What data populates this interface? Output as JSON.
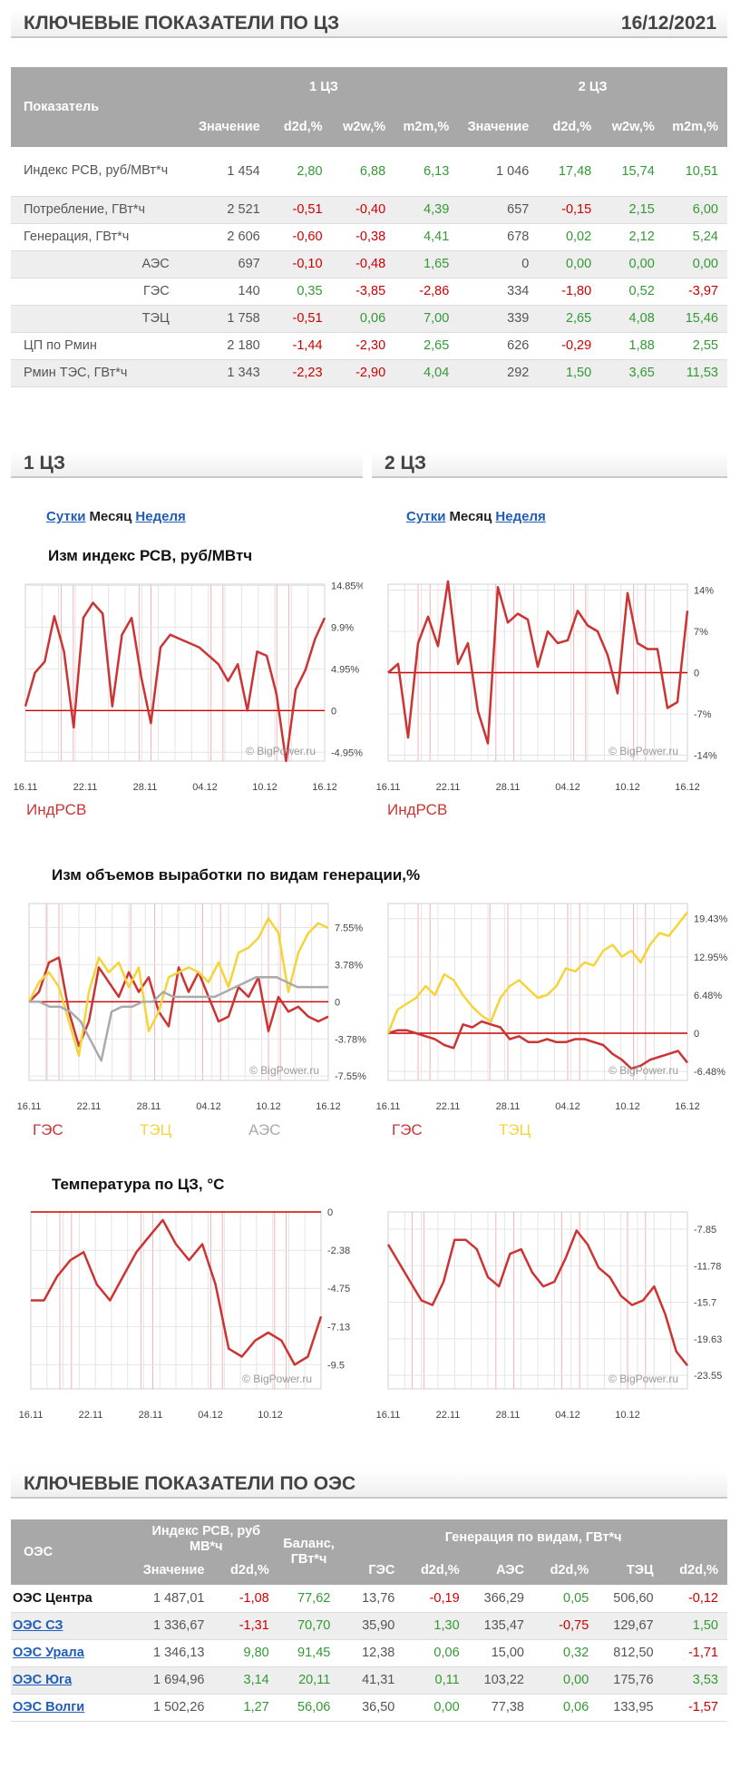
{
  "header": {
    "title": "КЛЮЧЕВЫЕ ПОКАЗАТЕЛИ ПО ЦЗ",
    "date": "16/12/2021"
  },
  "kp_table": {
    "col_indicator": "Показатель",
    "zone1": "1 ЦЗ",
    "zone2": "2 ЦЗ",
    "sub": [
      "Значение",
      "d2d,%",
      "w2w,%",
      "m2m,%",
      "Значение",
      "d2d,%",
      "w2w,%",
      "m2m,%"
    ],
    "rows": [
      {
        "label": "Индекс РСВ, руб/МВт*ч",
        "indent": false,
        "cells": [
          "1 454",
          "2,80",
          "6,88",
          "6,13",
          "1 046",
          "17,48",
          "15,74",
          "10,51"
        ]
      },
      {
        "label": "Потребление, ГВт*ч",
        "indent": false,
        "cells": [
          "2 521",
          "-0,51",
          "-0,40",
          "4,39",
          "657",
          "-0,15",
          "2,15",
          "6,00"
        ]
      },
      {
        "label": "Генерация, ГВт*ч",
        "indent": false,
        "cells": [
          "2 606",
          "-0,60",
          "-0,38",
          "4,41",
          "678",
          "0,02",
          "2,12",
          "5,24"
        ]
      },
      {
        "label": "АЭС",
        "indent": true,
        "cells": [
          "697",
          "-0,10",
          "-0,48",
          "1,65",
          "0",
          "0,00",
          "0,00",
          "0,00"
        ]
      },
      {
        "label": "ГЭС",
        "indent": true,
        "cells": [
          "140",
          "0,35",
          "-3,85",
          "-2,86",
          "334",
          "-1,80",
          "0,52",
          "-3,97"
        ]
      },
      {
        "label": "ТЭЦ",
        "indent": true,
        "cells": [
          "1 758",
          "-0,51",
          "0,06",
          "7,00",
          "339",
          "2,65",
          "4,08",
          "15,46"
        ]
      },
      {
        "label": "ЦП по Рмин",
        "indent": false,
        "cells": [
          "2 180",
          "-1,44",
          "-2,30",
          "2,65",
          "626",
          "-0,29",
          "1,88",
          "2,55"
        ]
      },
      {
        "label": "Рмин ТЭС, ГВт*ч",
        "indent": false,
        "cells": [
          "1 343",
          "-2,23",
          "-2,90",
          "4,04",
          "292",
          "1,50",
          "3,65",
          "11,53"
        ]
      }
    ]
  },
  "sections": {
    "z1": "1 ЦЗ",
    "z2": "2 ЦЗ"
  },
  "period": {
    "day": "Сутки",
    "month": "Месяц",
    "week": "Неделя"
  },
  "chart_titles": {
    "rsv": "Изм индекс РСВ, руб/МВтч",
    "gen": "Изм объемов выработки по видам генерации,%",
    "temp": "Температура по ЦЗ, °С"
  },
  "watermark": "© BigPower.ru",
  "legends": {
    "rsv": "ИндРСВ",
    "ges": "ГЭС",
    "tec": "ТЭЦ",
    "aes": "АЭС"
  },
  "colors": {
    "red": "#cc3333",
    "yellow": "#f5d43a",
    "gray": "#aaaaaa",
    "link": "#1f5db8",
    "pos": "#339933",
    "neg": "#cc0000"
  },
  "chart_data": [
    {
      "id": "rsv1",
      "type": "line",
      "x_labels": [
        "16.11",
        "22.11",
        "28.11",
        "04.12",
        "10.12",
        "16.12"
      ],
      "y_ticks": [
        "14.85%",
        "9.9%",
        "4.95%",
        "0",
        "-4.95%"
      ],
      "ylim": [
        -6,
        15
      ],
      "series": [
        {
          "name": "ИндРСВ",
          "values": [
            0.5,
            4.5,
            5.8,
            11.2,
            7,
            -2,
            11,
            12.8,
            11.5,
            0.5,
            9,
            11,
            4,
            -1.5,
            7.5,
            9,
            8.5,
            8,
            7.5,
            6.5,
            5.5,
            3.5,
            5.5,
            0,
            7,
            6.5,
            2,
            -6,
            2.5,
            4.8,
            8.5,
            11
          ]
        }
      ]
    },
    {
      "id": "rsv2",
      "type": "line",
      "x_labels": [
        "16.11",
        "22.11",
        "28.11",
        "04.12",
        "10.12",
        "16.12"
      ],
      "y_ticks": [
        "14%",
        "7%",
        "0",
        "-7%",
        "-14%"
      ],
      "ylim": [
        -15,
        15
      ],
      "series": [
        {
          "name": "ИндРСВ",
          "values": [
            0,
            1.5,
            -11,
            5,
            9.5,
            4.5,
            15.5,
            1.5,
            5,
            -6.5,
            -12,
            14.5,
            8.5,
            10,
            9,
            1,
            7,
            5,
            5.5,
            10.5,
            8,
            7,
            3,
            -3.5,
            13.5,
            5,
            4,
            4,
            -6,
            -5,
            10.5
          ]
        }
      ]
    },
    {
      "id": "gen1",
      "type": "line",
      "x_labels": [
        "16.11",
        "22.11",
        "28.11",
        "04.12",
        "10.12",
        "16.12"
      ],
      "y_ticks": [
        "7.55%",
        "3.78%",
        "0",
        "-3.78%",
        "-7.55%"
      ],
      "ylim": [
        -8,
        10
      ],
      "series": [
        {
          "name": "ГЭС",
          "values": [
            0,
            1,
            4,
            4.5,
            -1,
            -4.5,
            -2,
            3.5,
            2,
            0.5,
            3,
            1,
            2.5,
            -1,
            -2.5,
            3.5,
            1,
            3,
            0.5,
            -2,
            -1.5,
            1.5,
            0.5,
            2.5,
            -3,
            0.5,
            -1,
            -0.5,
            -1.5,
            -2,
            -1.5
          ]
        },
        {
          "name": "ТЭЦ",
          "values": [
            0,
            2,
            3,
            1.5,
            -2,
            -5.5,
            1,
            4.5,
            3,
            4,
            1.5,
            3.5,
            -3,
            -1,
            2.5,
            3,
            3.5,
            3,
            2,
            4,
            1.5,
            5,
            5.5,
            6.5,
            8.5,
            7,
            1,
            5,
            7,
            8,
            7.5
          ]
        },
        {
          "name": "АЭС",
          "values": [
            0,
            0,
            -0.5,
            -0.5,
            -1,
            -2,
            -4,
            -6,
            -1,
            -0.5,
            -0.5,
            0,
            0,
            1,
            0.5,
            0.5,
            0.5,
            0.5,
            0.5,
            1,
            1.5,
            2,
            2.5,
            2.5,
            2.5,
            2,
            1.5,
            1.5,
            1.5,
            1.5
          ]
        }
      ]
    },
    {
      "id": "gen2",
      "type": "line",
      "x_labels": [
        "16.11",
        "22.11",
        "28.11",
        "04.12",
        "10.12",
        "16.12"
      ],
      "y_ticks": [
        "19.43%",
        "12.95%",
        "6.48%",
        "0",
        "-6.48%"
      ],
      "ylim": [
        -8,
        22
      ],
      "series": [
        {
          "name": "ГЭС",
          "values": [
            0,
            0.5,
            0.5,
            0,
            -0.5,
            -1,
            -2,
            -2.5,
            1.5,
            1,
            2,
            1.5,
            1,
            -1,
            -0.5,
            -1.5,
            -1.5,
            -1,
            -1.5,
            -1.5,
            -1,
            -1,
            -1.5,
            -2,
            -3.5,
            -4.5,
            -6,
            -5.5,
            -4.5,
            -4,
            -3.5,
            -3,
            -5
          ]
        },
        {
          "name": "ТЭЦ",
          "values": [
            0,
            4,
            5,
            6,
            8,
            6.5,
            10,
            9,
            6.5,
            4.5,
            3,
            2,
            6,
            8,
            9,
            7.5,
            6,
            6.5,
            8,
            11,
            10.5,
            12,
            11.5,
            14,
            15,
            13,
            14,
            12,
            15,
            17,
            16.5,
            18.5,
            20.5
          ]
        }
      ]
    },
    {
      "id": "temp1",
      "type": "line",
      "x_labels": [
        "16.11",
        "22.11",
        "28.11",
        "04.12",
        "10.12"
      ],
      "y_ticks": [
        "0",
        "-2.38",
        "-4.75",
        "-7.13",
        "-9.5"
      ],
      "ylim": [
        -11,
        0
      ],
      "series": [
        {
          "name": "",
          "values": [
            -5.5,
            -5.5,
            -4,
            -3,
            -2.5,
            -4.5,
            -5.5,
            -4,
            -2.5,
            -1.5,
            -0.5,
            -2,
            -3,
            -2,
            -4.5,
            -8.5,
            -9,
            -8,
            -7.5,
            -8,
            -9.5,
            -9,
            -6.5
          ]
        }
      ]
    },
    {
      "id": "temp2",
      "type": "line",
      "x_labels": [
        "16.11",
        "22.11",
        "28.11",
        "04.12",
        "10.12"
      ],
      "y_ticks": [
        "-7.85",
        "-11.78",
        "-15.7",
        "-19.63",
        "-23.55"
      ],
      "ylim": [
        -25,
        -6
      ],
      "series": [
        {
          "name": "",
          "values": [
            -9.5,
            -11.5,
            -13.5,
            -15.5,
            -16,
            -13.5,
            -9,
            -9,
            -10,
            -13,
            -14,
            -10.5,
            -10,
            -12.5,
            -14,
            -13.5,
            -11,
            -8,
            -9.5,
            -12,
            -13,
            -15,
            -16,
            -15.5,
            -14,
            -17,
            -21,
            -22.5
          ]
        }
      ]
    }
  ],
  "oes_header": {
    "title": "КЛЮЧЕВЫЕ ПОКАЗАТЕЛИ ПО ОЭС"
  },
  "oes_table": {
    "col_oes": "ОЭС",
    "col_index": "Индекс РСВ, руб МВ*ч",
    "col_balance": "Баланс, ГВт*ч",
    "col_gen": "Генерация по видам, ГВт*ч",
    "sub": [
      "Значение",
      "d2d,%",
      "ГЭС",
      "d2d,%",
      "АЭС",
      "d2d,%",
      "ТЭЦ",
      "d2d,%"
    ],
    "rows": [
      {
        "name": "ОЭС Центра",
        "cells": [
          "1 487,01",
          "-1,08",
          "77,62",
          "13,76",
          "-0,19",
          "366,29",
          "0,05",
          "506,60",
          "-0,12"
        ]
      },
      {
        "name": "ОЭС СЗ",
        "cells": [
          "1 336,67",
          "-1,31",
          "70,70",
          "35,90",
          "1,30",
          "135,47",
          "-0,75",
          "129,67",
          "1,50"
        ]
      },
      {
        "name": "ОЭС Урала",
        "cells": [
          "1 346,13",
          "9,80",
          "91,45",
          "12,38",
          "0,06",
          "15,00",
          "0,32",
          "812,50",
          "-1,71"
        ]
      },
      {
        "name": "ОЭС Юга",
        "cells": [
          "1 694,96",
          "3,14",
          "20,11",
          "41,31",
          "0,11",
          "103,22",
          "0,00",
          "175,76",
          "3,53"
        ]
      },
      {
        "name": "ОЭС Волги",
        "cells": [
          "1 502,26",
          "1,27",
          "56,06",
          "36,50",
          "0,00",
          "77,38",
          "0,06",
          "133,95",
          "-1,57"
        ]
      }
    ]
  }
}
